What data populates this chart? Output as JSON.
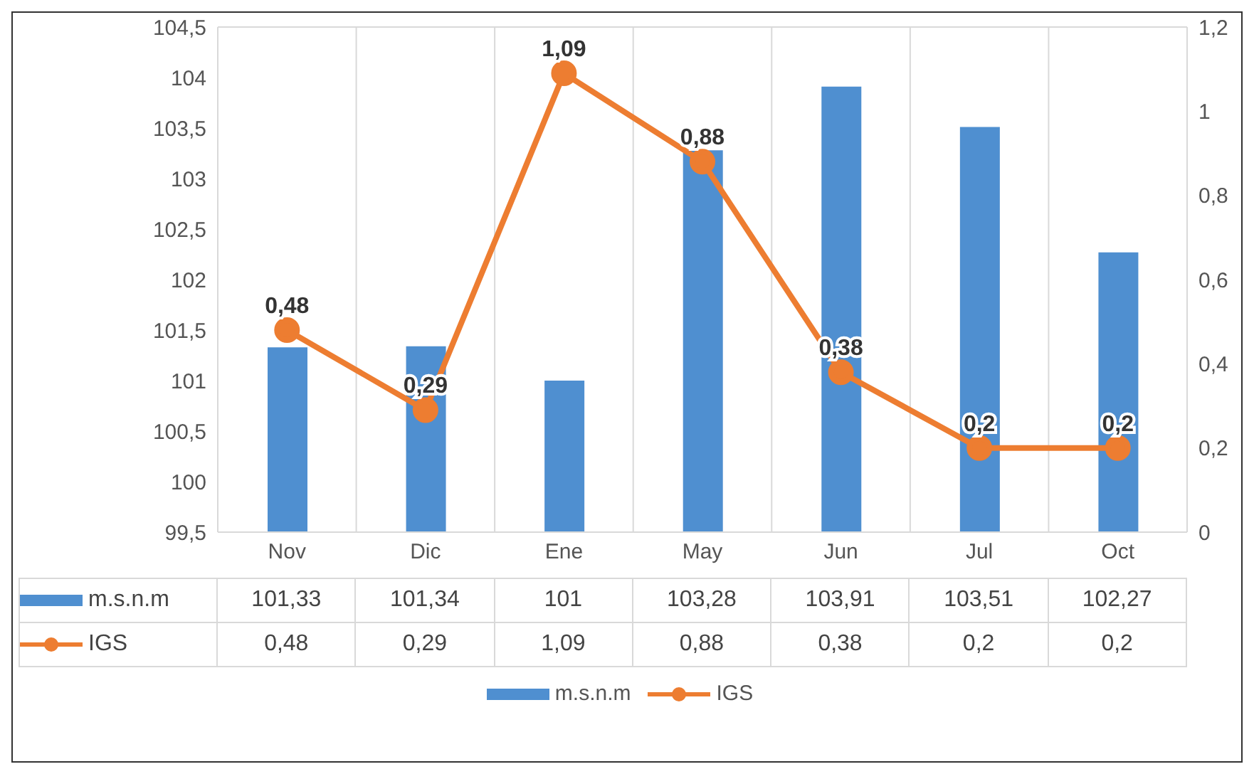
{
  "chart_data": {
    "type": "bar",
    "categories": [
      "Nov",
      "Dic",
      "Ene",
      "May",
      "Jun",
      "Jul",
      "Oct"
    ],
    "series": [
      {
        "name": "m.s.n.m",
        "color": "#4f8fd0",
        "values": [
          101.33,
          101.34,
          101,
          103.28,
          103.91,
          103.51,
          102.27
        ],
        "value_labels": [
          "101,33",
          "101,34",
          "101",
          "103,28",
          "103,91",
          "103,51",
          "102,27"
        ]
      },
      {
        "name": "IGS",
        "type": "line",
        "axis": "y2",
        "color": "#ed7d31",
        "values": [
          0.48,
          0.29,
          1.09,
          0.88,
          0.38,
          0.2,
          0.2
        ],
        "value_labels": [
          "0,48",
          "0,29",
          "1,09",
          "0,88",
          "0,38",
          "0,2",
          "0,2"
        ]
      }
    ],
    "ylim": [
      99.5,
      104.5
    ],
    "yticks": [
      {
        "value": 99.5,
        "label": "99,5"
      },
      100,
      {
        "value": 100.5,
        "label": "100,5"
      },
      101,
      {
        "value": 101.5,
        "label": "101,5"
      },
      102,
      {
        "value": 102.5,
        "label": "102,5"
      },
      103,
      {
        "value": 103.5,
        "label": "103,5"
      },
      104,
      {
        "value": 104.5,
        "label": "104,5"
      }
    ],
    "y2lim": [
      0,
      1.2
    ],
    "y2ticks": [
      0,
      {
        "value": 0.2,
        "label": "0,2"
      },
      {
        "value": 0.4,
        "label": "0,4"
      },
      {
        "value": 0.6,
        "label": "0,6"
      },
      {
        "value": 0.8,
        "label": "0,8"
      },
      1,
      {
        "value": 1.2,
        "label": "1,2"
      }
    ],
    "grid": true,
    "legend": "bottom",
    "marker": "circle"
  }
}
